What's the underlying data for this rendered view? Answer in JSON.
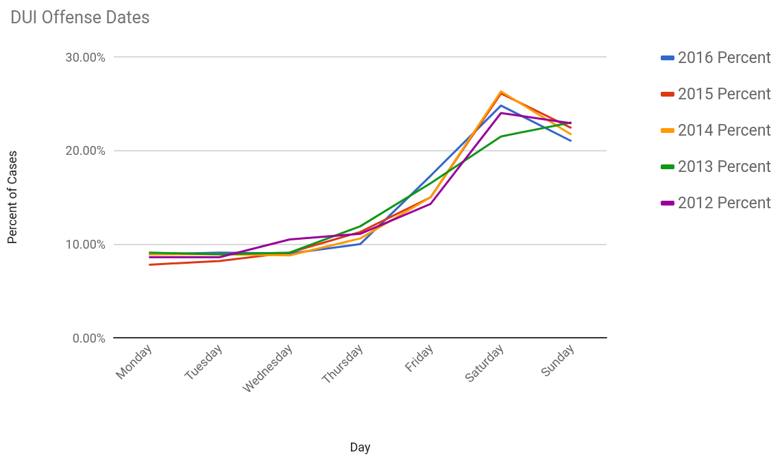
{
  "chart_data": {
    "type": "line",
    "title": "DUI Offense Dates",
    "xlabel": "Day",
    "ylabel": "Percent of Cases",
    "categories": [
      "Monday",
      "Tuesday",
      "Wednesday",
      "Thursday",
      "Friday",
      "Saturday",
      "Sunday"
    ],
    "series": [
      {
        "name": "2016 Percent",
        "color": "#3366cc",
        "values": [
          8.9,
          9.1,
          9.0,
          10.0,
          17.3,
          24.8,
          21.0
        ]
      },
      {
        "name": "2015 Percent",
        "color": "#dc3912",
        "values": [
          7.8,
          8.2,
          9.1,
          11.3,
          15.0,
          26.1,
          22.4
        ]
      },
      {
        "name": "2014 Percent",
        "color": "#ff9900",
        "values": [
          8.9,
          8.9,
          8.8,
          10.6,
          15.0,
          26.3,
          21.7
        ]
      },
      {
        "name": "2013 Percent",
        "color": "#109618",
        "values": [
          9.1,
          8.9,
          9.1,
          11.9,
          16.5,
          21.5,
          23.0
        ]
      },
      {
        "name": "2012 Percent",
        "color": "#990099",
        "values": [
          8.6,
          8.6,
          10.5,
          11.1,
          14.3,
          24.0,
          22.9
        ]
      }
    ],
    "ylim": [
      0,
      30
    ],
    "yticks": [
      {
        "value": 0,
        "label": "0.00%"
      },
      {
        "value": 10,
        "label": "10.00%"
      },
      {
        "value": 20,
        "label": "20.00%"
      },
      {
        "value": 30,
        "label": "30.00%"
      }
    ],
    "grid": "y",
    "legend": "right",
    "marker": "none",
    "line_style": "solid"
  }
}
